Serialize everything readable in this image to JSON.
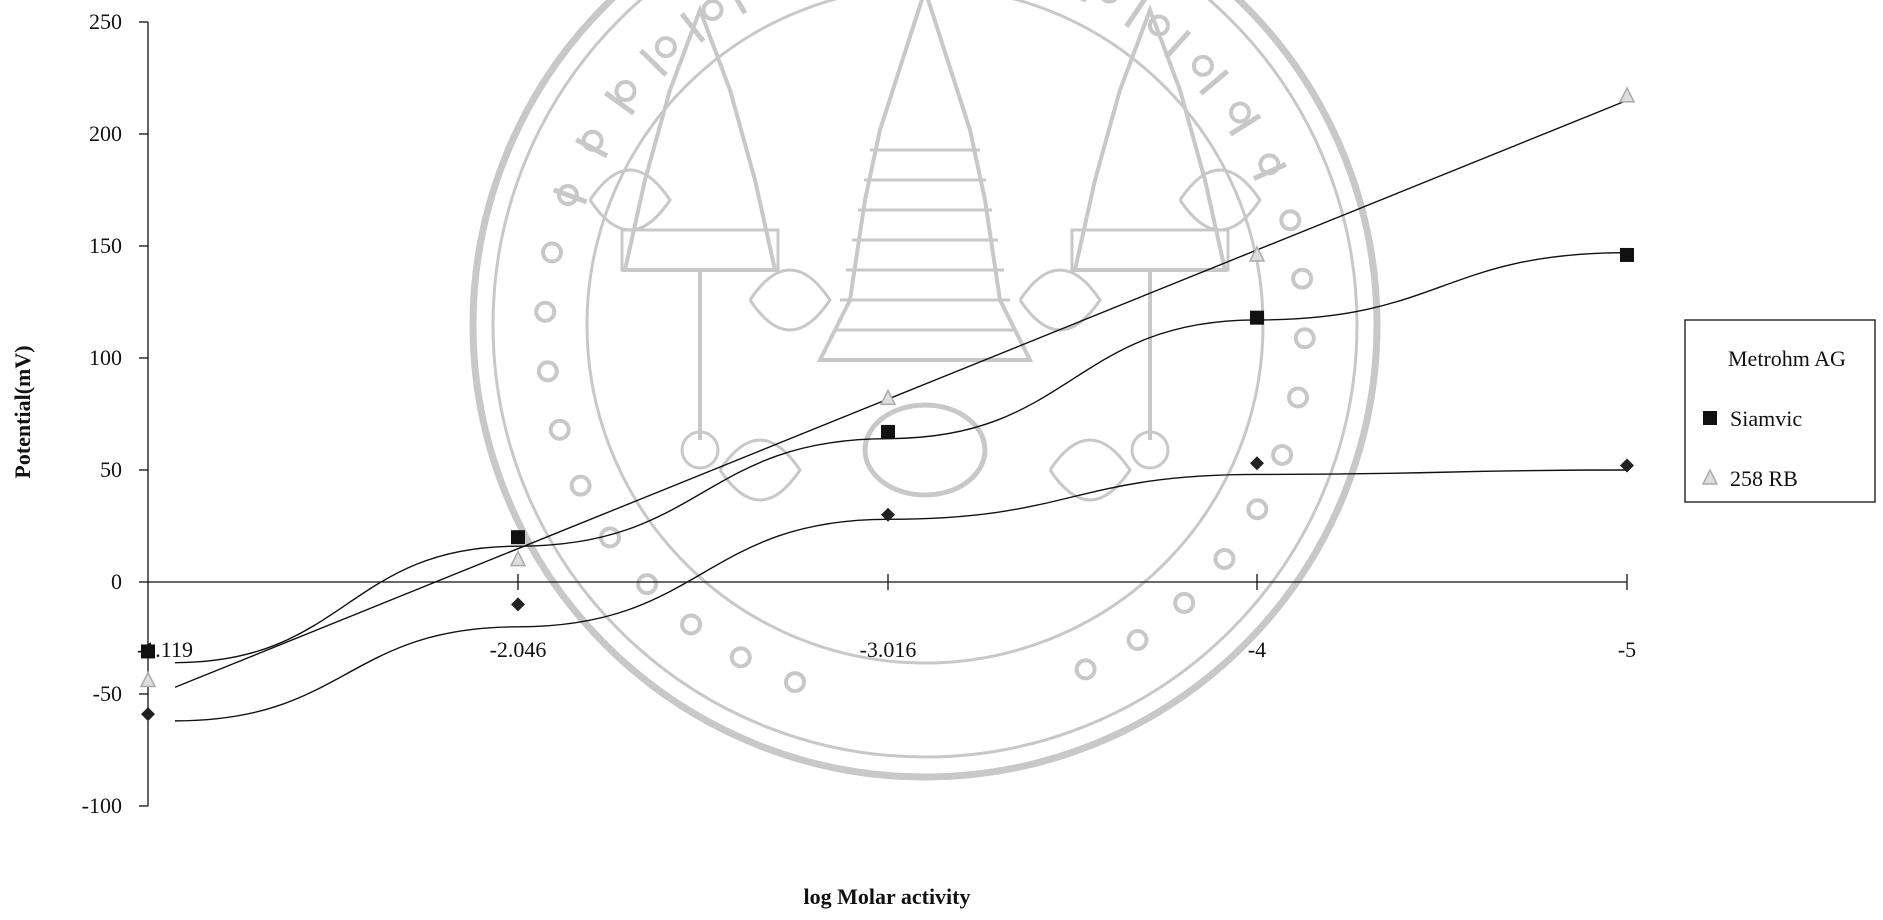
{
  "chart_data": {
    "type": "scatter",
    "title": "",
    "xlabel": "log  Molar  activity",
    "ylabel": "Potential(mV)",
    "categories": [
      "-1.119",
      "-2.046",
      "-3.016",
      "-4",
      "-5"
    ],
    "ylim": [
      -100,
      250
    ],
    "yticks": [
      250,
      200,
      150,
      100,
      50,
      0,
      -50,
      -100
    ],
    "y_tick_labels": [
      "250",
      "200",
      "150",
      "100",
      "50",
      "0",
      "-50",
      "-100"
    ],
    "grid": false,
    "legend_position": "right",
    "series": [
      {
        "name": "Metrohm AG",
        "marker": "diamond",
        "color": "#222222",
        "values": [
          -59,
          -10,
          30,
          53,
          52
        ],
        "trend": "curve",
        "trend_values": [
          -62,
          -20,
          28,
          48,
          50
        ]
      },
      {
        "name": "Siamvic",
        "marker": "square",
        "color": "#111111",
        "values": [
          -31,
          20,
          67,
          118,
          146
        ],
        "trend": "curve",
        "trend_values": [
          -36,
          16,
          64,
          117,
          147
        ]
      },
      {
        "name": "258 RB",
        "marker": "triangle",
        "color": "#aaaaaa",
        "values": [
          -44,
          10,
          82,
          146,
          217
        ],
        "trend": "line",
        "trend_values": [
          -47,
          13,
          80,
          150,
          215
        ]
      }
    ]
  },
  "watermark": {
    "description": "university seal",
    "color": "#c8c8c8"
  }
}
